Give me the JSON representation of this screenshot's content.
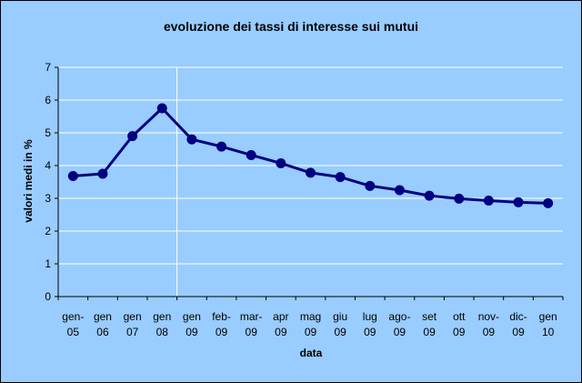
{
  "chart_data": {
    "type": "line",
    "title": "evoluzione dei tassi di interesse sui mutui",
    "xlabel": "data",
    "ylabel": "valori medi in %",
    "categories": [
      [
        "gen-",
        "05"
      ],
      [
        "gen",
        "06"
      ],
      [
        "gen",
        "07"
      ],
      [
        "gen",
        "08"
      ],
      [
        "gen",
        "09"
      ],
      [
        "feb-",
        "09"
      ],
      [
        "mar-",
        "09"
      ],
      [
        "apr",
        "09"
      ],
      [
        "mag",
        "09"
      ],
      [
        "giu",
        "09"
      ],
      [
        "lug",
        "09"
      ],
      [
        "ago-",
        "09"
      ],
      [
        "set",
        "09"
      ],
      [
        "ott",
        "09"
      ],
      [
        "nov-",
        "09"
      ],
      [
        "dic-",
        "09"
      ],
      [
        "gen",
        "10"
      ]
    ],
    "values": [
      3.68,
      3.75,
      4.9,
      5.75,
      4.8,
      4.58,
      4.32,
      4.07,
      3.78,
      3.65,
      3.38,
      3.25,
      3.08,
      2.99,
      2.93,
      2.88,
      2.85
    ],
    "ylim": [
      0,
      7
    ],
    "yticks": [
      0,
      1,
      2,
      3,
      4,
      5,
      6,
      7
    ],
    "gridlines": "horizontal",
    "legend": "none",
    "colors": {
      "plot_background": "#99ccff",
      "series": "#000080",
      "gridlines": "#ffffff"
    }
  }
}
